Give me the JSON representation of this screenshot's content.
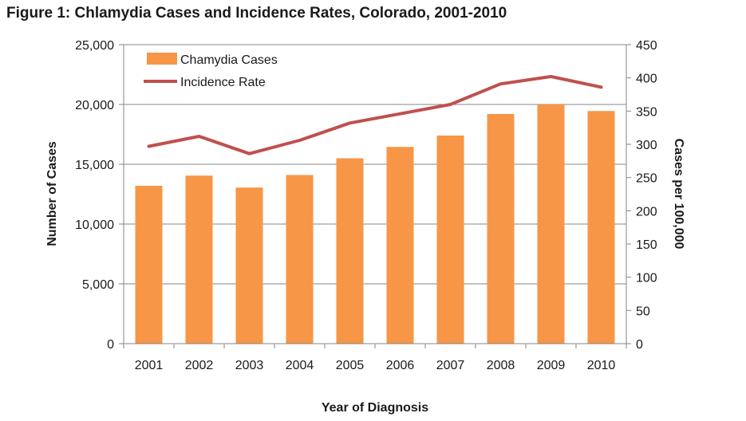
{
  "title": "Figure 1: Chlamydia Cases and Incidence Rates, Colorado, 2001-2010",
  "colors": {
    "bar": "#F79646",
    "line": "#C0504D",
    "grid": "#878787",
    "axis": "#868686"
  },
  "chart_data": {
    "type": "bar",
    "title": "Figure 1: Chlamydia Cases and Incidence Rates, Colorado, 2001-2010",
    "xlabel": "Year of Diagnosis",
    "ylabel": "Number of Cases",
    "y2label": "Cases per 100,000",
    "categories": [
      "2001",
      "2002",
      "2003",
      "2004",
      "2005",
      "2006",
      "2007",
      "2008",
      "2009",
      "2010"
    ],
    "ylim": [
      0,
      25000
    ],
    "y2lim": [
      0,
      450
    ],
    "yticks": [
      "0",
      "5,000",
      "10,000",
      "15,000",
      "20,000",
      "25,000"
    ],
    "y2ticks": [
      "0",
      "50",
      "100",
      "150",
      "200",
      "250",
      "300",
      "350",
      "400",
      "450"
    ],
    "grid": true,
    "legend_position": "top-left",
    "series": [
      {
        "name": "Chamydia Cases",
        "type": "bar",
        "axis": "left",
        "values": [
          13200,
          14050,
          13050,
          14100,
          15500,
          16450,
          17400,
          19200,
          20000,
          19450
        ]
      },
      {
        "name": "Incidence Rate",
        "type": "line",
        "axis": "right",
        "values": [
          297,
          312,
          286,
          306,
          332,
          346,
          360,
          391,
          402,
          386
        ]
      }
    ]
  }
}
